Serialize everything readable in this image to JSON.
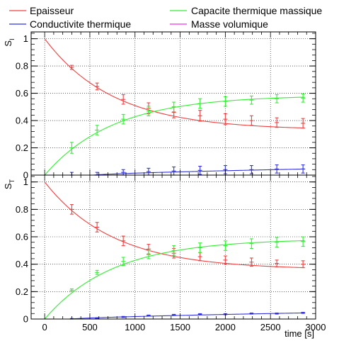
{
  "legend": [
    {
      "label": "Epaisseur",
      "color": "#f04040"
    },
    {
      "label": "Capacite thermique massique",
      "color": "#33ee33"
    },
    {
      "label": "Conductivite thermique",
      "color": "#3333dd"
    },
    {
      "label": "Masse volumique",
      "color": "#ee33ee"
    }
  ],
  "chart_data": [
    {
      "type": "line",
      "ylabel": "S_I",
      "xlabel": "",
      "xlim": [
        -150,
        3000
      ],
      "ylim": [
        0,
        1.05
      ],
      "yticks": [
        "0",
        "0.2",
        "0.4",
        "0.6",
        "0.8",
        "1"
      ],
      "grid": true,
      "points_x": [
        300,
        580,
        870,
        1150,
        1430,
        1720,
        2000,
        2290,
        2570,
        2860
      ],
      "series": [
        {
          "name": "Epaisseur",
          "color": "#f04040",
          "curve": {
            "form": "exp",
            "start": 1.0,
            "asymptote": 0.33,
            "tau": 760
          },
          "points": [
            0.79,
            0.65,
            0.555,
            0.49,
            0.46,
            0.435,
            0.41,
            0.4,
            0.385,
            0.38
          ],
          "errors": [
            0.015,
            0.025,
            0.035,
            0.04,
            0.04,
            0.04,
            0.04,
            0.035,
            0.035,
            0.035
          ]
        },
        {
          "name": "Capacite thermique massique",
          "color": "#33ee33",
          "curve": {
            "form": "exp",
            "start": 0.0,
            "asymptote": 0.585,
            "tau": 760
          },
          "points": [
            0.2,
            0.33,
            0.41,
            0.47,
            0.5,
            0.525,
            0.54,
            0.55,
            0.56,
            0.565
          ],
          "errors": [
            0.04,
            0.035,
            0.035,
            0.035,
            0.035,
            0.035,
            0.035,
            0.03,
            0.03,
            0.03
          ]
        },
        {
          "name": "Conductivite thermique",
          "color": "#3333dd",
          "curve": {
            "form": "ramp",
            "onset": 550,
            "end_value": 0.045,
            "end_x": 2900
          },
          "points": [
            0.0,
            0.0,
            0.02,
            0.025,
            0.03,
            0.035,
            0.04,
            0.04,
            0.045,
            0.045
          ],
          "errors": [
            0.02,
            0.02,
            0.02,
            0.025,
            0.03,
            0.03,
            0.03,
            0.03,
            0.03,
            0.03
          ]
        },
        {
          "name": "Masse volumique",
          "color": "#ee33ee",
          "curve": {
            "form": "flat",
            "value": 0.0
          },
          "points": [],
          "errors": []
        }
      ]
    },
    {
      "type": "line",
      "ylabel": "S_T",
      "xlabel": "time [s]",
      "xlim": [
        -150,
        3000
      ],
      "ylim": [
        0,
        1.05
      ],
      "yticks": [
        "0",
        "0.2",
        "0.4",
        "0.6",
        "0.8",
        "1"
      ],
      "xticks": [
        "0",
        "500",
        "1000",
        "1500",
        "2000",
        "2500",
        "3000"
      ],
      "grid": true,
      "points_x": [
        300,
        580,
        870,
        1150,
        1430,
        1720,
        2000,
        2290,
        2570,
        2860
      ],
      "series": [
        {
          "name": "Epaisseur",
          "color": "#f04040",
          "curve": {
            "form": "exp",
            "start": 1.0,
            "asymptote": 0.36,
            "tau": 760
          },
          "points": [
            0.8,
            0.67,
            0.57,
            0.51,
            0.48,
            0.455,
            0.43,
            0.415,
            0.405,
            0.4
          ],
          "errors": [
            0.035,
            0.035,
            0.035,
            0.035,
            0.035,
            0.03,
            0.03,
            0.03,
            0.025,
            0.025
          ]
        },
        {
          "name": "Capacite thermique massique",
          "color": "#33ee33",
          "curve": {
            "form": "exp",
            "start": 0.0,
            "asymptote": 0.585,
            "tau": 760
          },
          "points": [
            0.21,
            0.34,
            0.42,
            0.47,
            0.5,
            0.52,
            0.535,
            0.55,
            0.56,
            0.565
          ],
          "errors": [
            0.01,
            0.015,
            0.03,
            0.03,
            0.035,
            0.035,
            0.035,
            0.035,
            0.035,
            0.035
          ]
        },
        {
          "name": "Conductivite thermique",
          "color": "#3333dd",
          "curve": {
            "form": "ramp",
            "onset": 300,
            "end_value": 0.045,
            "end_x": 2900
          },
          "points": [
            0.0,
            0.005,
            0.015,
            0.025,
            0.03,
            0.035,
            0.035,
            0.04,
            0.04,
            0.045
          ],
          "errors": [
            0.004,
            0.004,
            0.004,
            0.004,
            0.004,
            0.004,
            0.004,
            0.004,
            0.004,
            0.004
          ]
        },
        {
          "name": "Masse volumique",
          "color": "#ee33ee",
          "curve": {
            "form": "flat",
            "value": 0.0
          },
          "points": [],
          "errors": []
        }
      ]
    }
  ]
}
